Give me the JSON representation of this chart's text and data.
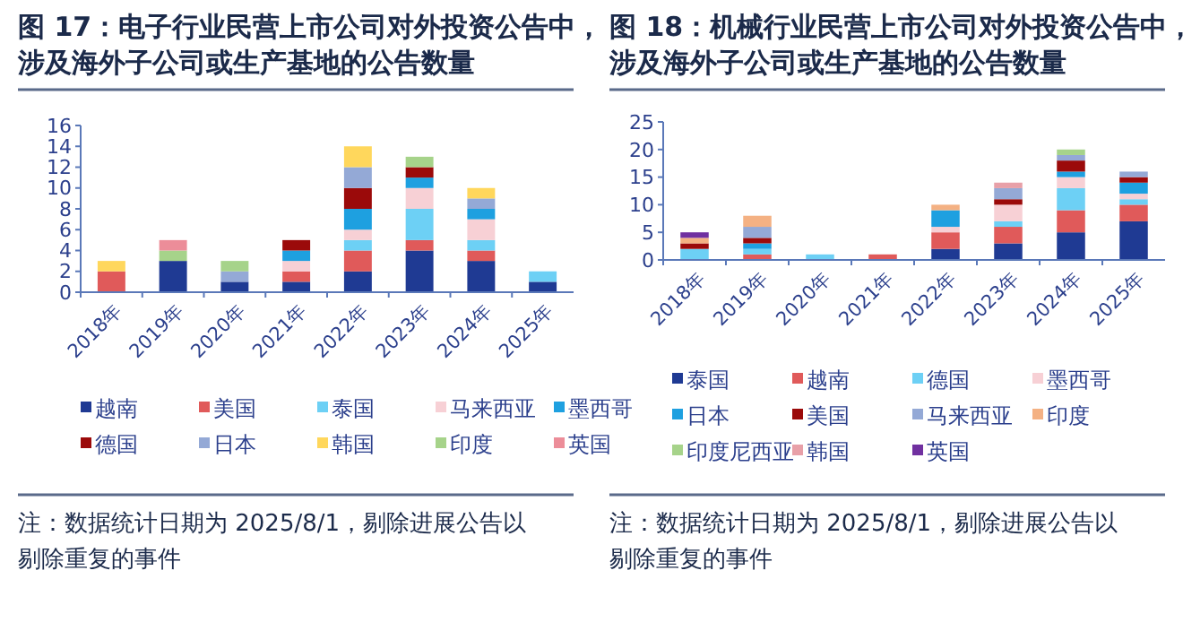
{
  "chart_data": [
    {
      "type": "bar",
      "title": "图 17：电子行业民营上市公司对外投资公告中，涉及海外子公司或生产基地的公告数量",
      "stacked": true,
      "legend": "bottom",
      "categories": [
        "2018年",
        "2019年",
        "2020年",
        "2021年",
        "2022年",
        "2023年",
        "2024年",
        "2025年"
      ],
      "ylim": [
        0,
        16
      ],
      "yticks": [
        0,
        2,
        4,
        6,
        8,
        10,
        12,
        14,
        16
      ],
      "series": [
        {
          "name": "越南",
          "color": "#1f3a93",
          "values": [
            0,
            3,
            1,
            1,
            2,
            4,
            3,
            1
          ]
        },
        {
          "name": "美国",
          "color": "#e05a5a",
          "values": [
            2,
            0,
            0,
            1,
            2,
            1,
            1,
            0
          ]
        },
        {
          "name": "泰国",
          "color": "#6dd0f5",
          "values": [
            0,
            0,
            0,
            0,
            1,
            3,
            1,
            1
          ]
        },
        {
          "name": "马来西亚",
          "color": "#f7d0d5",
          "values": [
            0,
            0,
            0,
            1,
            1,
            2,
            2,
            0
          ]
        },
        {
          "name": "墨西哥",
          "color": "#1ea0e0",
          "values": [
            0,
            0,
            0,
            1,
            2,
            1,
            1,
            0
          ]
        },
        {
          "name": "德国",
          "color": "#9b0a0a",
          "values": [
            0,
            0,
            0,
            1,
            2,
            1,
            0,
            0
          ]
        },
        {
          "name": "日本",
          "color": "#94a9d6",
          "values": [
            0,
            0,
            1,
            0,
            2,
            0,
            1,
            0
          ]
        },
        {
          "name": "韩国",
          "color": "#ffd75c",
          "values": [
            1,
            0,
            0,
            0,
            2,
            0,
            1,
            0
          ]
        },
        {
          "name": "印度",
          "color": "#a6d38a",
          "values": [
            0,
            1,
            1,
            0,
            0,
            1,
            0,
            0
          ]
        },
        {
          "name": "英国",
          "color": "#ec8d99",
          "values": [
            0,
            1,
            0,
            0,
            0,
            0,
            0,
            0
          ]
        }
      ],
      "annotations": [
        "注：数据统计日期为 2025/8/1，剔除进展公告以剔除重复的事件"
      ]
    },
    {
      "type": "bar",
      "title": "图 18：机械行业民营上市公司对外投资公告中，涉及海外子公司或生产基地的公告数量",
      "stacked": true,
      "legend": "bottom",
      "categories": [
        "2018年",
        "2019年",
        "2020年",
        "2021年",
        "2022年",
        "2023年",
        "2024年",
        "2025年"
      ],
      "ylim": [
        0,
        25
      ],
      "yticks": [
        0,
        5,
        10,
        15,
        20,
        25
      ],
      "series": [
        {
          "name": "泰国",
          "color": "#1f3a93",
          "values": [
            0,
            0,
            0,
            0,
            2,
            3,
            5,
            7
          ]
        },
        {
          "name": "越南",
          "color": "#e05a5a",
          "values": [
            0,
            1,
            0,
            1,
            3,
            3,
            4,
            3
          ]
        },
        {
          "name": "德国",
          "color": "#6dd0f5",
          "values": [
            2,
            1,
            1,
            0,
            0,
            1,
            4,
            1
          ]
        },
        {
          "name": "墨西哥",
          "color": "#f7d0d5",
          "values": [
            0,
            0,
            0,
            0,
            1,
            3,
            2,
            1
          ]
        },
        {
          "name": "日本",
          "color": "#1ea0e0",
          "values": [
            0,
            1,
            0,
            0,
            3,
            0,
            1,
            2
          ]
        },
        {
          "name": "美国",
          "color": "#9b0a0a",
          "values": [
            1,
            1,
            0,
            0,
            0,
            1,
            2,
            1
          ]
        },
        {
          "name": "马来西亚",
          "color": "#94a9d6",
          "values": [
            0,
            2,
            0,
            0,
            0,
            2,
            1,
            1
          ]
        },
        {
          "name": "印度",
          "color": "#f4b183",
          "values": [
            1,
            2,
            0,
            0,
            1,
            0,
            0,
            0
          ]
        },
        {
          "name": "印度尼西亚",
          "color": "#a6d38a",
          "values": [
            0,
            0,
            0,
            0,
            0,
            0,
            1,
            0
          ]
        },
        {
          "name": "韩国",
          "color": "#e8a0a8",
          "values": [
            0,
            0,
            0,
            0,
            0,
            1,
            0,
            0
          ]
        },
        {
          "name": "英国",
          "color": "#7030a0",
          "values": [
            1,
            0,
            0,
            0,
            0,
            0,
            0,
            0
          ]
        }
      ],
      "annotations": [
        "注：数据统计日期为 2025/8/1，剔除进展公告以剔除重复的事件"
      ]
    }
  ]
}
